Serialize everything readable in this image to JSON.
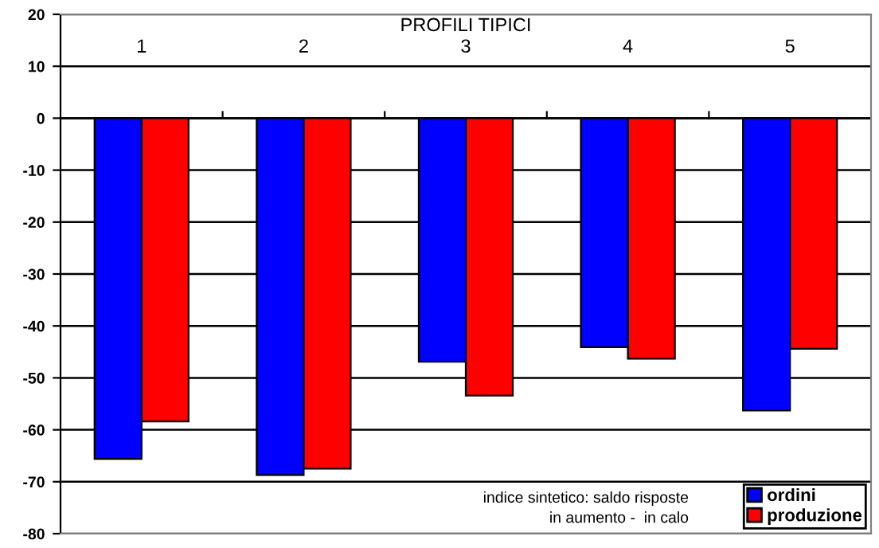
{
  "chart_data": {
    "type": "bar",
    "xlabel": "PROFILI TIPICI",
    "categories": [
      "1",
      "2",
      "3",
      "4",
      "5"
    ],
    "series": [
      {
        "name": "ordini",
        "color": "#0000ff",
        "values": [
          -65.6,
          -68.7,
          -46.9,
          -44.1,
          -56.3
        ]
      },
      {
        "name": "produzione",
        "color": "#ff0000",
        "values": [
          -58.4,
          -67.5,
          -53.4,
          -46.3,
          -44.4
        ]
      }
    ],
    "ylim": [
      -80,
      20
    ],
    "yticks": [
      20,
      10,
      0,
      -10,
      -20,
      -30,
      -40,
      -50,
      -60,
      -70,
      -80
    ],
    "grid": "y",
    "legend": "bottom right",
    "annotations": [
      "indice sintetico: saldo risposte\nin aumento -  in calo"
    ]
  }
}
